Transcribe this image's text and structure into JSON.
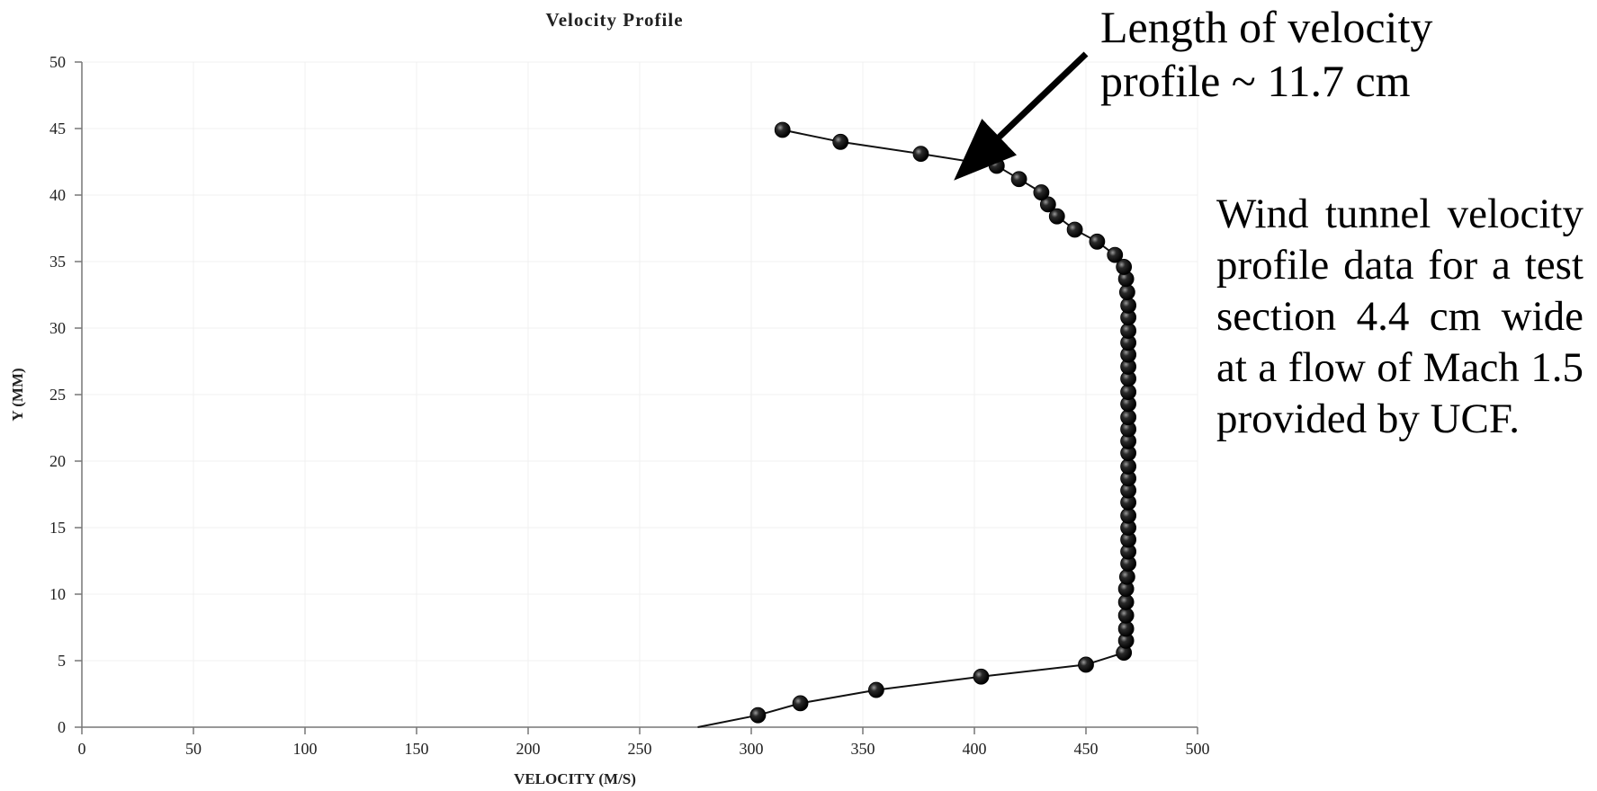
{
  "chart_data": {
    "type": "scatter",
    "title": "Velocity Profile",
    "xlabel": "VELOCITY (M/S)",
    "ylabel": "Y (MM)",
    "xlim": [
      0,
      500
    ],
    "ylim": [
      0,
      50
    ],
    "xticks": [
      "0",
      "50",
      "100",
      "150",
      "200",
      "250",
      "300",
      "350",
      "400",
      "450",
      "500"
    ],
    "yticks": [
      "0",
      "5",
      "10",
      "15",
      "20",
      "25",
      "30",
      "35",
      "40",
      "45",
      "50"
    ],
    "grid": true,
    "legend": "none",
    "marker_color": "#111111",
    "line_color": "#111111",
    "line_start": {
      "x": 276,
      "y": 0
    },
    "series": [
      {
        "points": [
          {
            "x": 303,
            "y": 0.9
          },
          {
            "x": 322,
            "y": 1.8
          },
          {
            "x": 356,
            "y": 2.8
          },
          {
            "x": 403,
            "y": 3.8
          },
          {
            "x": 450,
            "y": 4.7
          },
          {
            "x": 467,
            "y": 5.6
          },
          {
            "x": 468,
            "y": 6.5
          },
          {
            "x": 468,
            "y": 7.4
          },
          {
            "x": 468,
            "y": 8.4
          },
          {
            "x": 468,
            "y": 9.4
          },
          {
            "x": 468,
            "y": 10.4
          },
          {
            "x": 468.5,
            "y": 11.3
          },
          {
            "x": 469,
            "y": 12.3
          },
          {
            "x": 469,
            "y": 13.2
          },
          {
            "x": 469,
            "y": 14.1
          },
          {
            "x": 469,
            "y": 15.0
          },
          {
            "x": 469,
            "y": 15.9
          },
          {
            "x": 469,
            "y": 16.9
          },
          {
            "x": 469,
            "y": 17.8
          },
          {
            "x": 469,
            "y": 18.7
          },
          {
            "x": 469,
            "y": 19.6
          },
          {
            "x": 469,
            "y": 20.6
          },
          {
            "x": 469,
            "y": 21.5
          },
          {
            "x": 469,
            "y": 22.4
          },
          {
            "x": 469,
            "y": 23.3
          },
          {
            "x": 469,
            "y": 24.3
          },
          {
            "x": 469,
            "y": 25.2
          },
          {
            "x": 469,
            "y": 26.2
          },
          {
            "x": 469,
            "y": 27.1
          },
          {
            "x": 469,
            "y": 28.0
          },
          {
            "x": 469,
            "y": 28.9
          },
          {
            "x": 469,
            "y": 29.8
          },
          {
            "x": 469,
            "y": 30.8
          },
          {
            "x": 469,
            "y": 31.7
          },
          {
            "x": 468.5,
            "y": 32.7
          },
          {
            "x": 468,
            "y": 33.7
          },
          {
            "x": 467,
            "y": 34.6
          },
          {
            "x": 463,
            "y": 35.5
          },
          {
            "x": 455,
            "y": 36.5
          },
          {
            "x": 445,
            "y": 37.4
          },
          {
            "x": 437,
            "y": 38.4
          },
          {
            "x": 433,
            "y": 39.3
          },
          {
            "x": 430,
            "y": 40.2
          },
          {
            "x": 420,
            "y": 41.2
          },
          {
            "x": 410,
            "y": 42.2
          },
          {
            "x": 376,
            "y": 43.1
          },
          {
            "x": 340,
            "y": 44.0
          },
          {
            "x": 314,
            "y": 44.9
          }
        ]
      }
    ],
    "annotations": [
      {
        "lines": [
          "Length of velocity",
          "profile ~ 11.7 cm"
        ],
        "arrow_to": {
          "x": 395,
          "y": 42.5
        }
      }
    ]
  },
  "side_note": "Wind tunnel velocity profile data for a test section 4.4 cm wide at a flow of Mach 1.5 provided by UCF."
}
